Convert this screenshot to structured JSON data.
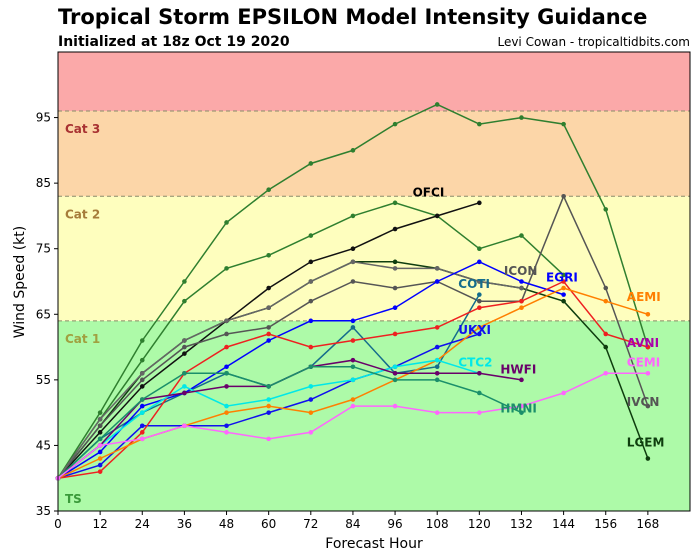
{
  "chart_data": {
    "type": "line",
    "title": "Tropical Storm EPSILON Model Intensity Guidance",
    "subtitle": "Initialized at 18z Oct 19 2020",
    "credit": "Levi Cowan - tropicaltidbits.com",
    "xlabel": "Forecast Hour",
    "ylabel": "Wind Speed (kt)",
    "xlim": [
      0,
      180
    ],
    "ylim": [
      35,
      105
    ],
    "xticks": [
      0,
      12,
      24,
      36,
      48,
      60,
      72,
      84,
      96,
      108,
      120,
      132,
      144,
      156,
      168
    ],
    "yticks": [
      35,
      45,
      55,
      65,
      75,
      85,
      95
    ],
    "bands": [
      {
        "name": "TS",
        "from": 35,
        "to": 64,
        "color": "#adfaa8",
        "label_color": "#3a9a3a"
      },
      {
        "name": "Cat 1",
        "from": 64,
        "to": 83,
        "color": "#fefebe",
        "label_color": "#a0a040"
      },
      {
        "name": "Cat 2",
        "from": 83,
        "to": 96,
        "color": "#fcd6a8",
        "label_color": "#a67c3a"
      },
      {
        "name": "Cat 3",
        "from": 96,
        "to": 105,
        "color": "#fba9a9",
        "label_color": "#a83232"
      }
    ],
    "series": [
      {
        "name": "",
        "color": "#2f7f2f",
        "x": [
          0,
          12,
          24,
          36,
          48,
          60,
          72,
          84,
          96,
          108,
          120,
          132,
          144,
          156,
          168
        ],
        "y": [
          40,
          50,
          61,
          70,
          79,
          84,
          88,
          90,
          94,
          97,
          94,
          95,
          94,
          81,
          60
        ]
      },
      {
        "name": "",
        "color": "#2f7f2f",
        "x": [
          0,
          12,
          24,
          36,
          48,
          60,
          72,
          84,
          96,
          108,
          120,
          132,
          144
        ],
        "y": [
          40,
          49,
          58,
          67,
          72,
          74,
          77,
          80,
          82,
          80,
          75,
          77,
          71
        ]
      },
      {
        "name": "LGEM",
        "color": "#0e3d0e",
        "x": [
          0,
          12,
          24,
          36,
          48,
          60,
          72,
          84,
          96,
          108,
          120,
          132,
          144,
          156,
          168
        ],
        "y": [
          40,
          48,
          56,
          61,
          64,
          66,
          70,
          73,
          73,
          72,
          70,
          69,
          67,
          60,
          43
        ]
      },
      {
        "name": "OFCI",
        "color": "#111111",
        "x": [
          0,
          12,
          24,
          36,
          48,
          60,
          72,
          84,
          96,
          108,
          120
        ],
        "y": [
          40,
          47,
          54,
          59,
          64,
          69,
          73,
          75,
          78,
          80,
          82
        ]
      },
      {
        "name": "ICON",
        "color": "#555555",
        "x": [
          0,
          12,
          24,
          36,
          48,
          60,
          72,
          84,
          96,
          108,
          120,
          132,
          144,
          156,
          168
        ],
        "y": [
          40,
          48,
          55,
          60,
          62,
          63,
          67,
          70,
          69,
          70,
          67,
          67,
          83,
          69,
          51
        ]
      },
      {
        "name": "IVCN",
        "color": "#666666",
        "x": [
          0,
          12,
          24,
          36,
          48,
          60,
          72,
          84,
          96,
          108,
          120,
          132
        ],
        "y": [
          40,
          49,
          56,
          61,
          64,
          66,
          70,
          73,
          72,
          72,
          70,
          69
        ]
      },
      {
        "name": "COTI",
        "color": "#146c8c",
        "x": [
          0,
          12,
          24,
          36,
          48,
          60,
          72,
          84,
          96,
          108,
          120
        ],
        "y": [
          40,
          46,
          50,
          53,
          56,
          54,
          57,
          63,
          56,
          57,
          68
        ]
      },
      {
        "name": "EGRI",
        "color": "#0000ff",
        "x": [
          0,
          12,
          24,
          36,
          48,
          60,
          72,
          84,
          96,
          108,
          120,
          132,
          144
        ],
        "y": [
          40,
          44,
          51,
          53,
          57,
          61,
          64,
          64,
          66,
          70,
          73,
          70,
          68
        ]
      },
      {
        "name": "UKXI",
        "color": "#1010ee",
        "x": [
          0,
          12,
          24,
          36,
          48,
          60,
          72,
          84,
          96,
          108,
          120
        ],
        "y": [
          40,
          42,
          48,
          48,
          48,
          50,
          52,
          55,
          57,
          60,
          62
        ]
      },
      {
        "name": "AVNI",
        "color": "#ee2020",
        "x": [
          0,
          12,
          24,
          36,
          48,
          60,
          72,
          84,
          96,
          108,
          120,
          132,
          144,
          156,
          168
        ],
        "y": [
          40,
          41,
          47,
          56,
          60,
          62,
          60,
          61,
          62,
          63,
          66,
          67,
          70,
          62,
          60
        ]
      },
      {
        "name": "AEMI",
        "color": "#ff7f00",
        "x": [
          0,
          12,
          24,
          36,
          48,
          60,
          72,
          84,
          96,
          108,
          120,
          132,
          144,
          156,
          168
        ],
        "y": [
          40,
          43,
          46,
          48,
          50,
          51,
          50,
          52,
          55,
          58,
          63,
          66,
          69,
          67,
          65
        ]
      },
      {
        "name": "CTC2",
        "color": "#00e8e8",
        "x": [
          0,
          12,
          24,
          36,
          48,
          60,
          72,
          84,
          96,
          108,
          120
        ],
        "y": [
          40,
          45,
          50,
          54,
          51,
          52,
          54,
          55,
          57,
          58,
          56
        ]
      },
      {
        "name": "HWFI",
        "color": "#6a006a",
        "x": [
          0,
          12,
          24,
          36,
          48,
          60,
          72,
          84,
          96,
          108,
          120,
          132
        ],
        "y": [
          40,
          45,
          52,
          53,
          54,
          54,
          57,
          58,
          56,
          56,
          56,
          55
        ]
      },
      {
        "name": "HMNI",
        "color": "#1a8f6a",
        "x": [
          0,
          12,
          24,
          36,
          48,
          60,
          72,
          84,
          96,
          108,
          120,
          132
        ],
        "y": [
          40,
          46,
          52,
          56,
          56,
          54,
          57,
          57,
          55,
          55,
          53,
          50
        ]
      },
      {
        "name": "CEMI",
        "color": "#ff66ff",
        "x": [
          0,
          12,
          24,
          36,
          48,
          60,
          72,
          84,
          96,
          108,
          120,
          132,
          144,
          156,
          168
        ],
        "y": [
          40,
          45,
          46,
          48,
          47,
          46,
          47,
          51,
          51,
          50,
          50,
          51,
          53,
          56,
          56
        ]
      }
    ],
    "series_labels": [
      {
        "name": "OFCI",
        "x": 101,
        "y": 83,
        "color": "#000000"
      },
      {
        "name": "ICON",
        "x": 127,
        "y": 71,
        "color": "#555555"
      },
      {
        "name": "COTI",
        "x": 114,
        "y": 69,
        "color": "#146c8c"
      },
      {
        "name": "EGRI",
        "x": 139,
        "y": 70,
        "color": "#0000ff"
      },
      {
        "name": "AEMI",
        "x": 162,
        "y": 67,
        "color": "#ff7f00"
      },
      {
        "name": "UKXI",
        "x": 114,
        "y": 62,
        "color": "#1010ee"
      },
      {
        "name": "AVNI",
        "x": 162,
        "y": 60,
        "color": "#aa00aa"
      },
      {
        "name": "HWFI",
        "x": 126,
        "y": 56,
        "color": "#6a006a"
      },
      {
        "name": "CTC2",
        "x": 114,
        "y": 57,
        "color": "#00e8e8"
      },
      {
        "name": "CEMI",
        "x": 162,
        "y": 57,
        "color": "#ff66ff"
      },
      {
        "name": "HMNI",
        "x": 126,
        "y": 50,
        "color": "#1a8f6a"
      },
      {
        "name": "IVCN",
        "x": 162,
        "y": 51,
        "color": "#555555"
      },
      {
        "name": "LGEM",
        "x": 162,
        "y": 44.8,
        "color": "#0e3d0e"
      }
    ]
  }
}
